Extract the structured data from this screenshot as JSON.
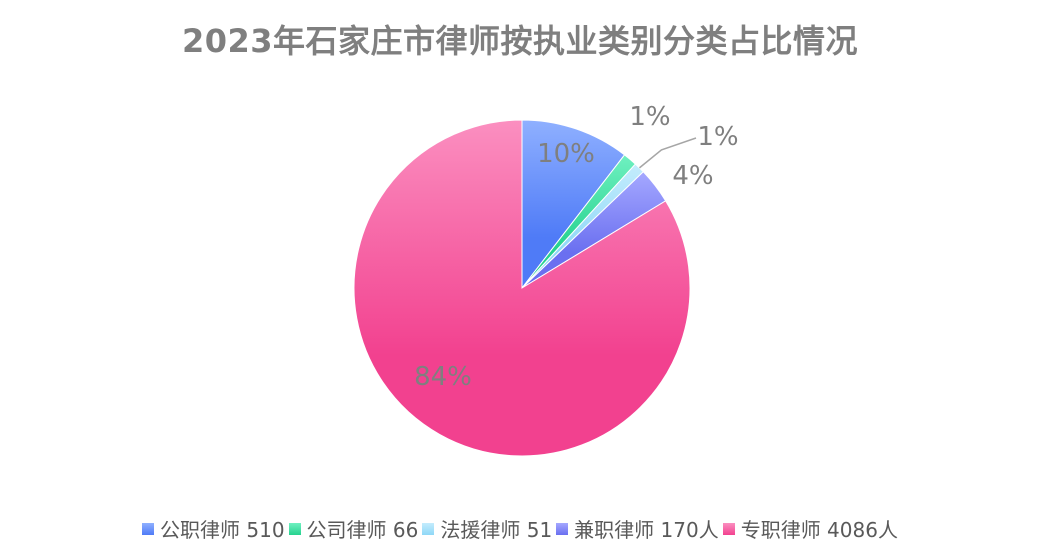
{
  "chart_data": {
    "type": "pie",
    "title": "2023年石家庄市律师按执业类别分类占比情况",
    "slices": [
      {
        "label": "公职律师 510",
        "value": 510,
        "pct_label": "10%",
        "color": "#4f7bf7",
        "color_light": "#8fb0ff"
      },
      {
        "label": "公司律师 66",
        "value": 66,
        "pct_label": "1%",
        "color": "#26d28f",
        "color_light": "#6ff0c0"
      },
      {
        "label": "法援律师 51",
        "value": 51,
        "pct_label": "1%",
        "color": "#8fd8f7",
        "color_light": "#c4ecfd"
      },
      {
        "label": "兼职律师 170人",
        "value": 170,
        "pct_label": "4%",
        "color": "#6a6ff0",
        "color_light": "#a5a8ff"
      },
      {
        "label": "专职律师 4086人",
        "value": 4086,
        "pct_label": "84%",
        "color": "#f2418f",
        "color_light": "#fb8fc0"
      }
    ],
    "legend_position": "bottom"
  }
}
